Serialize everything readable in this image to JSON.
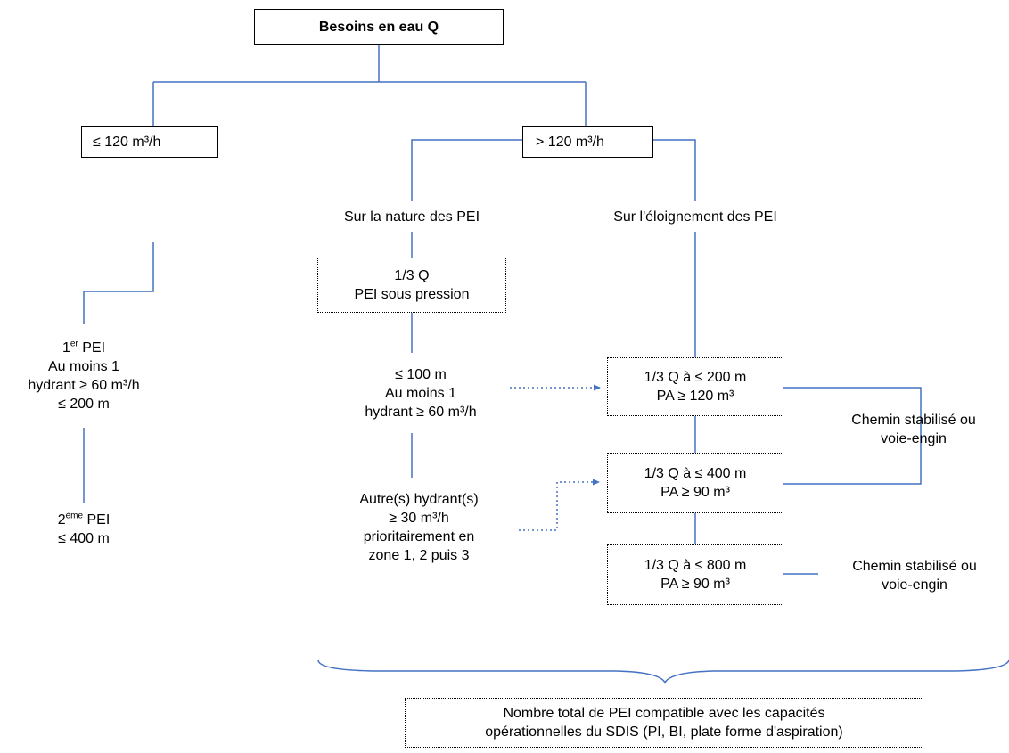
{
  "root": {
    "label": "Besoins en eau Q"
  },
  "left_branch": {
    "label": "≤ 120 m³/h",
    "first_pei": {
      "title_main": "1",
      "title_sup": "er",
      "title_rest": " PEI",
      "line2": "Au moins 1",
      "line3": "hydrant ≥ 60 m³/h",
      "line4": "≤ 200 m"
    },
    "second_pei": {
      "title_main": "2",
      "title_sup": "ème",
      "title_rest": " PEI",
      "line2": "≤ 400 m"
    }
  },
  "right_branch": {
    "label": "> 120 m³/h",
    "nature": {
      "heading": "Sur la nature des PEI",
      "pressure_box": {
        "line1": "1/3 Q",
        "line2": "PEI sous pression"
      },
      "hydrant_100": {
        "line1": "≤ 100 m",
        "line2": "Au moins 1",
        "line3": "hydrant ≥ 60 m³/h"
      },
      "other_hydrants": {
        "line1": "Autre(s) hydrant(s)",
        "line2": "≥ 30 m³/h",
        "line3": "prioritairement en",
        "line4": "zone 1, 2 puis 3"
      }
    },
    "distance": {
      "heading": "Sur l'éloignement des PEI",
      "box_200": {
        "line1": "1/3 Q à ≤ 200 m",
        "line2": "PA ≥ 120 m³"
      },
      "box_400": {
        "line1": "1/3 Q à ≤ 400 m",
        "line2": "PA ≥ 90 m³"
      },
      "box_800": {
        "line1": "1/3 Q à ≤ 800 m",
        "line2": "PA ≥ 90 m³"
      },
      "access_note_1": {
        "line1": "Chemin stabilisé ou",
        "line2": "voie-engin"
      },
      "access_note_2": {
        "line1": "Chemin stabilisé ou",
        "line2": "voie-engin"
      }
    }
  },
  "summary": {
    "line1": "Nombre total de PEI compatible avec les capacités",
    "line2": "opérationnelles du SDIS (PI, BI, plate forme d'aspiration)"
  },
  "colors": {
    "connector": "#4472c4",
    "text": "#000000",
    "box_border": "#000000"
  }
}
